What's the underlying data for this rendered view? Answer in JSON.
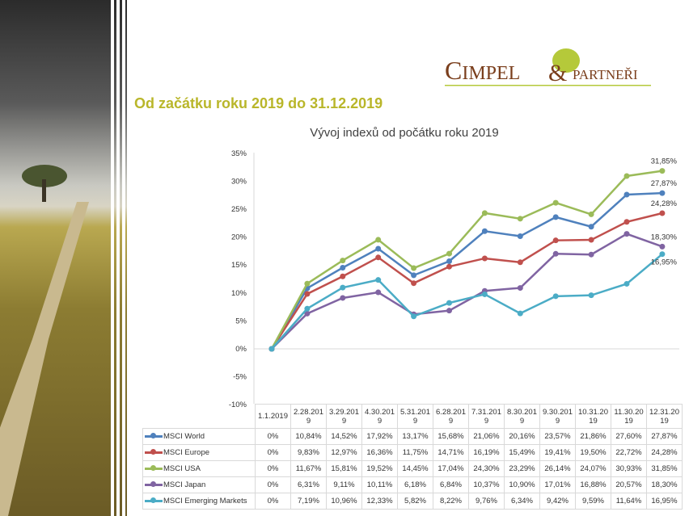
{
  "page": {
    "title": "Od začátku roku 2019 do 31.12.2019",
    "logo_text": "CIMPEL & PARTNEŘI"
  },
  "colors": {
    "MSCI World": "#4f81bd",
    "MSCI Europe": "#c0504d",
    "MSCI USA": "#9bbb59",
    "MSCI Japan": "#8064a2",
    "MSCI Emerging Markets": "#4bacc6",
    "title": "#b9b62a",
    "logo_brown": "#7a3e1c",
    "logo_green": "#b5c93a"
  },
  "chart_data": {
    "type": "line",
    "title": "Vývoj indexů od počátku roku 2019",
    "categories": [
      "1.1.2019",
      "2.28.2019",
      "3.29.2019",
      "4.30.2019",
      "5.31.2019",
      "6.28.2019",
      "7.31.2019",
      "8.30.2019",
      "9.30.2019",
      "10.31.2019",
      "11.30.2019",
      "12.31.2019"
    ],
    "ylim": [
      -10,
      35
    ],
    "yticks": [
      "35%",
      "30%",
      "25%",
      "20%",
      "15%",
      "10%",
      "5%",
      "0%",
      "-5%",
      "-10%"
    ],
    "grid": false,
    "legend": "data table",
    "series": [
      {
        "name": "MSCI World",
        "values": [
          0,
          10.84,
          14.52,
          17.92,
          13.17,
          15.68,
          21.06,
          20.16,
          23.57,
          21.86,
          27.6,
          27.87
        ],
        "labels": [
          "0%",
          "10,84%",
          "14,52%",
          "17,92%",
          "13,17%",
          "15,68%",
          "21,06%",
          "20,16%",
          "23,57%",
          "21,86%",
          "27,60%",
          "27,87%"
        ]
      },
      {
        "name": "MSCI Europe",
        "values": [
          0,
          9.83,
          12.97,
          16.36,
          11.75,
          14.71,
          16.19,
          15.49,
          19.41,
          19.5,
          22.72,
          24.28
        ],
        "labels": [
          "0%",
          "9,83%",
          "12,97%",
          "16,36%",
          "11,75%",
          "14,71%",
          "16,19%",
          "15,49%",
          "19,41%",
          "19,50%",
          "22,72%",
          "24,28%"
        ]
      },
      {
        "name": "MSCI USA",
        "values": [
          0,
          11.67,
          15.81,
          19.52,
          14.45,
          17.04,
          24.3,
          23.29,
          26.14,
          24.07,
          30.93,
          31.85
        ],
        "labels": [
          "0%",
          "11,67%",
          "15,81%",
          "19,52%",
          "14,45%",
          "17,04%",
          "24,30%",
          "23,29%",
          "26,14%",
          "24,07%",
          "30,93%",
          "31,85%"
        ]
      },
      {
        "name": "MSCI Japan",
        "values": [
          0,
          6.31,
          9.11,
          10.11,
          6.18,
          6.84,
          10.37,
          10.9,
          17.01,
          16.88,
          20.57,
          18.3
        ],
        "labels": [
          "0%",
          "6,31%",
          "9,11%",
          "10,11%",
          "6,18%",
          "6,84%",
          "10,37%",
          "10,90%",
          "17,01%",
          "16,88%",
          "20,57%",
          "18,30%"
        ]
      },
      {
        "name": "MSCI Emerging Markets",
        "values": [
          0,
          7.19,
          10.96,
          12.33,
          5.82,
          8.22,
          9.76,
          6.34,
          9.42,
          9.59,
          11.64,
          16.95
        ],
        "labels": [
          "0%",
          "7,19%",
          "10,96%",
          "12,33%",
          "5,82%",
          "8,22%",
          "9,76%",
          "6,34%",
          "9,42%",
          "9,59%",
          "11,64%",
          "16,95%"
        ]
      }
    ],
    "end_labels": [
      "27,87%",
      "24,28%",
      "31,85%",
      "18,30%",
      "16,95%"
    ]
  }
}
